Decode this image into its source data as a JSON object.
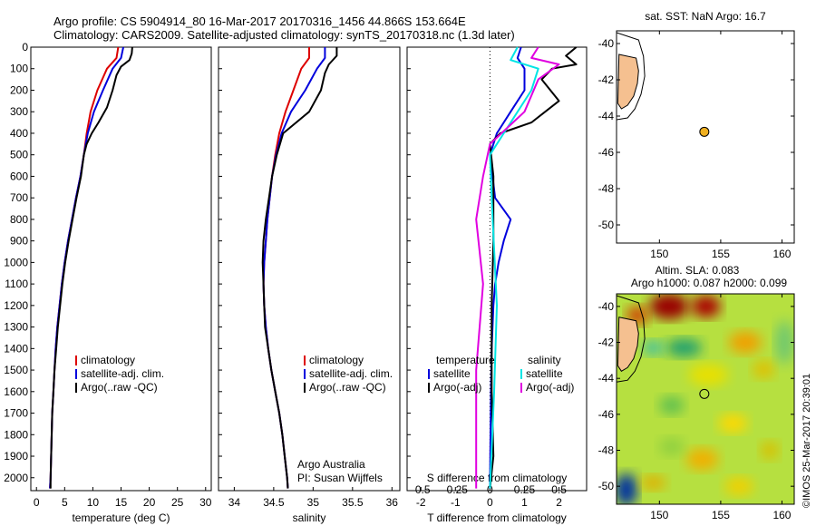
{
  "header": {
    "line1": "Argo profile: CS 5904914_80 16-Mar-2017 20170316_1456 44.866S 153.664E",
    "line2": "Climatology: CARS2009. Satellite-adjusted climatology: synTS_20170318.nc (1.3d later)"
  },
  "colors": {
    "climatology": "#dd0000",
    "satellite": "#0000dd",
    "argo": "#000000",
    "sal_satellite": "#00e5e5",
    "sal_argo": "#e000e0",
    "land": "#f5c090"
  },
  "chart_data": [
    {
      "type": "line",
      "xlabel": "temperature (deg C)",
      "ylabel": "",
      "xlim": [
        -1,
        31
      ],
      "ylim": [
        2060,
        0
      ],
      "y_reversed": true,
      "xticks": [
        "0",
        "5",
        "10",
        "15",
        "20",
        "25",
        "30"
      ],
      "yticks": [
        "0",
        "100",
        "200",
        "300",
        "400",
        "500",
        "600",
        "700",
        "800",
        "900",
        "1000",
        "1100",
        "1200",
        "1300",
        "1400",
        "1500",
        "1600",
        "1700",
        "1800",
        "1900",
        "2000"
      ],
      "legend": [
        "climatology",
        "satellite-adj. clim.",
        "Argo(..raw -QC)"
      ],
      "legend_position": "lower-right",
      "series": [
        {
          "name": "climatology",
          "color": "#dd0000",
          "points": [
            [
              14.5,
              0
            ],
            [
              14.2,
              50
            ],
            [
              12.5,
              100
            ],
            [
              10.8,
              200
            ],
            [
              9.6,
              300
            ],
            [
              8.9,
              400
            ],
            [
              8.4,
              500
            ],
            [
              7.8,
              600
            ],
            [
              7,
              700
            ],
            [
              6.3,
              800
            ],
            [
              5.6,
              900
            ],
            [
              5,
              1000
            ],
            [
              4.5,
              1100
            ],
            [
              4.1,
              1200
            ],
            [
              3.7,
              1300
            ],
            [
              3.4,
              1400
            ],
            [
              3.2,
              1500
            ],
            [
              3,
              1600
            ],
            [
              2.8,
              1700
            ],
            [
              2.7,
              1800
            ],
            [
              2.6,
              1900
            ],
            [
              2.5,
              2000
            ],
            [
              2.4,
              2050
            ]
          ]
        },
        {
          "name": "satellite-adj. clim.",
          "color": "#0000dd",
          "points": [
            [
              15.4,
              0
            ],
            [
              15,
              50
            ],
            [
              13.5,
              100
            ],
            [
              11.8,
              200
            ],
            [
              10.2,
              300
            ],
            [
              9.1,
              400
            ],
            [
              8.4,
              500
            ],
            [
              7.8,
              600
            ],
            [
              7,
              700
            ],
            [
              6.3,
              800
            ],
            [
              5.6,
              900
            ],
            [
              5,
              1000
            ],
            [
              4.5,
              1100
            ],
            [
              4.1,
              1200
            ],
            [
              3.7,
              1300
            ],
            [
              3.4,
              1400
            ],
            [
              3.2,
              1500
            ],
            [
              3,
              1600
            ],
            [
              2.8,
              1700
            ],
            [
              2.7,
              1800
            ],
            [
              2.6,
              1900
            ],
            [
              2.5,
              2000
            ],
            [
              2.4,
              2050
            ]
          ]
        },
        {
          "name": "Argo(..raw -QC)",
          "color": "#000000",
          "points": [
            [
              17,
              0
            ],
            [
              16.9,
              30
            ],
            [
              16.5,
              60
            ],
            [
              15,
              90
            ],
            [
              14.2,
              130
            ],
            [
              13.5,
              200
            ],
            [
              12.5,
              280
            ],
            [
              11,
              350
            ],
            [
              9.8,
              400
            ],
            [
              8.9,
              450
            ],
            [
              8.4,
              500
            ],
            [
              7.9,
              600
            ],
            [
              7.1,
              700
            ],
            [
              6.4,
              800
            ],
            [
              5.7,
              900
            ],
            [
              5.1,
              1000
            ],
            [
              4.6,
              1100
            ],
            [
              4.2,
              1200
            ],
            [
              3.8,
              1300
            ],
            [
              3.5,
              1400
            ],
            [
              3.2,
              1500
            ],
            [
              3,
              1600
            ],
            [
              2.8,
              1700
            ],
            [
              2.7,
              1800
            ],
            [
              2.6,
              1900
            ],
            [
              2.5,
              2000
            ],
            [
              2.5,
              2050
            ]
          ]
        }
      ]
    },
    {
      "type": "line",
      "xlabel": "salinity",
      "xlim": [
        33.8,
        36.1
      ],
      "ylim": [
        2060,
        0
      ],
      "y_reversed": true,
      "xticks": [
        "34",
        "34.5",
        "35",
        "35.5",
        "36"
      ],
      "legend": [
        "climatology",
        "satellite-adj. clim.",
        "Argo(..raw -QC)"
      ],
      "legend_position": "lower-right",
      "annotations": [
        "Argo Australia",
        "PI: Susan Wijffels"
      ],
      "series": [
        {
          "name": "climatology",
          "color": "#dd0000",
          "points": [
            [
              34.95,
              0
            ],
            [
              34.95,
              50
            ],
            [
              34.85,
              100
            ],
            [
              34.75,
              200
            ],
            [
              34.65,
              300
            ],
            [
              34.57,
              400
            ],
            [
              34.52,
              500
            ],
            [
              34.48,
              600
            ],
            [
              34.45,
              700
            ],
            [
              34.42,
              800
            ],
            [
              34.4,
              900
            ],
            [
              34.38,
              1000
            ],
            [
              34.37,
              1100
            ],
            [
              34.38,
              1200
            ],
            [
              34.4,
              1300
            ],
            [
              34.43,
              1400
            ],
            [
              34.47,
              1500
            ],
            [
              34.52,
              1600
            ],
            [
              34.57,
              1700
            ],
            [
              34.61,
              1800
            ],
            [
              34.64,
              1900
            ],
            [
              34.67,
              2000
            ],
            [
              34.68,
              2050
            ]
          ]
        },
        {
          "name": "satellite-adj. clim.",
          "color": "#0000dd",
          "points": [
            [
              35.15,
              0
            ],
            [
              35.15,
              50
            ],
            [
              35.05,
              100
            ],
            [
              34.9,
              200
            ],
            [
              34.72,
              300
            ],
            [
              34.6,
              400
            ],
            [
              34.53,
              500
            ],
            [
              34.48,
              600
            ],
            [
              34.45,
              700
            ],
            [
              34.42,
              800
            ],
            [
              34.4,
              900
            ],
            [
              34.38,
              1000
            ],
            [
              34.37,
              1100
            ],
            [
              34.38,
              1200
            ],
            [
              34.4,
              1300
            ],
            [
              34.43,
              1400
            ],
            [
              34.47,
              1500
            ],
            [
              34.52,
              1600
            ],
            [
              34.57,
              1700
            ],
            [
              34.61,
              1800
            ],
            [
              34.64,
              1900
            ],
            [
              34.67,
              2000
            ],
            [
              34.68,
              2050
            ]
          ]
        },
        {
          "name": "Argo(..raw -QC)",
          "color": "#000000",
          "points": [
            [
              35.3,
              0
            ],
            [
              35.3,
              40
            ],
            [
              35.2,
              80
            ],
            [
              35.15,
              120
            ],
            [
              35.1,
              200
            ],
            [
              34.95,
              300
            ],
            [
              34.62,
              400
            ],
            [
              34.54,
              500
            ],
            [
              34.48,
              600
            ],
            [
              34.44,
              700
            ],
            [
              34.4,
              800
            ],
            [
              34.37,
              900
            ],
            [
              34.36,
              1000
            ],
            [
              34.37,
              1100
            ],
            [
              34.38,
              1200
            ],
            [
              34.39,
              1300
            ],
            [
              34.43,
              1400
            ],
            [
              34.47,
              1500
            ],
            [
              34.52,
              1600
            ],
            [
              34.57,
              1700
            ],
            [
              34.61,
              1800
            ],
            [
              34.64,
              1900
            ],
            [
              34.67,
              2000
            ],
            [
              34.68,
              2050
            ]
          ]
        }
      ]
    },
    {
      "type": "line",
      "xlabel": "T difference from climatology",
      "xlabel_top": "S difference from climatology",
      "xlim": [
        -2.4,
        2.8
      ],
      "ylim": [
        2060,
        0
      ],
      "y_reversed": true,
      "xticks": [
        "-2",
        "-1",
        "0",
        "1",
        "2"
      ],
      "xticks_top": [
        "-0.5",
        "-0.25",
        "0",
        "0.25",
        "0.5"
      ],
      "legend_temperature": {
        "title": "temperature",
        "items": [
          "satellite",
          "Argo(-adj)"
        ]
      },
      "legend_salinity": {
        "title": "salinity",
        "items": [
          "satellite",
          "Argo(-adj)"
        ]
      },
      "series": [
        {
          "name": "satellite",
          "variable": "temperature",
          "color": "#0000dd",
          "points": [
            [
              0.9,
              0
            ],
            [
              0.8,
              50
            ],
            [
              1,
              100
            ],
            [
              1,
              200
            ],
            [
              0.6,
              300
            ],
            [
              0.2,
              400
            ],
            [
              0,
              500
            ],
            [
              0.15,
              700
            ],
            [
              0.6,
              800
            ],
            [
              0.4,
              900
            ],
            [
              0.25,
              1000
            ],
            [
              0.15,
              1100
            ],
            [
              0.1,
              1200
            ],
            [
              0.05,
              1400
            ],
            [
              0.03,
              1600
            ],
            [
              0,
              2050
            ]
          ]
        },
        {
          "name": "Argo(-adj)",
          "variable": "temperature",
          "color": "#000000",
          "points": [
            [
              2.5,
              0
            ],
            [
              2.2,
              40
            ],
            [
              2.5,
              80
            ],
            [
              1.8,
              100
            ],
            [
              1.5,
              150
            ],
            [
              2,
              250
            ],
            [
              1.2,
              350
            ],
            [
              0.3,
              400
            ],
            [
              0,
              450
            ],
            [
              0.1,
              600
            ],
            [
              0.1,
              900
            ],
            [
              0.05,
              1200
            ],
            [
              0.05,
              1600
            ],
            [
              0.1,
              1900
            ],
            [
              0,
              2050
            ]
          ]
        },
        {
          "name": "satellite",
          "variable": "salinity",
          "color": "#00e5e5",
          "points": [
            [
              0.2,
              0
            ],
            [
              0.15,
              60
            ],
            [
              0.35,
              100
            ],
            [
              0.3,
              200
            ],
            [
              0.1,
              400
            ],
            [
              0,
              500
            ],
            [
              0.02,
              800
            ],
            [
              0.05,
              1200
            ],
            [
              0.03,
              1600
            ],
            [
              0,
              2050
            ]
          ]
        },
        {
          "name": "Argo(-adj)",
          "variable": "salinity",
          "color": "#e000e0",
          "points": [
            [
              0.35,
              0
            ],
            [
              0.3,
              50
            ],
            [
              0.5,
              80
            ],
            [
              0.35,
              150
            ],
            [
              0.25,
              300
            ],
            [
              0,
              450
            ],
            [
              -0.05,
              600
            ],
            [
              -0.1,
              800
            ],
            [
              -0.05,
              1100
            ],
            [
              -0.1,
              1500
            ],
            [
              -0.1,
              2050
            ]
          ]
        }
      ]
    },
    {
      "type": "scatter",
      "title": "sat. SST: NaN Argo: 16.7",
      "xlim": [
        146.5,
        161
      ],
      "ylim": [
        -51,
        -39.3
      ],
      "xticks": [
        "150",
        "155",
        "160"
      ],
      "yticks": [
        "-40",
        "-42",
        "-44",
        "-46",
        "-48",
        "-50"
      ],
      "series": [
        {
          "name": "",
          "points": [
            [
              153.664,
              -44.866
            ]
          ]
        }
      ]
    },
    {
      "type": "heatmap",
      "title": "Altim. SLA: 0.083",
      "subtitle": "Argo h1000: 0.087 h2000: 0.099",
      "xlim": [
        146.5,
        161
      ],
      "ylim": [
        -51,
        -39.3
      ],
      "xticks": [
        "150",
        "155",
        "160"
      ],
      "yticks": [
        "-40",
        "-42",
        "-44",
        "-46",
        "-48",
        "-50"
      ],
      "series": [
        {
          "name": "",
          "points": [
            [
              153.664,
              -44.866
            ]
          ]
        }
      ]
    }
  ],
  "credit": "©IMOS 25-Mar-2017 20:39:01"
}
